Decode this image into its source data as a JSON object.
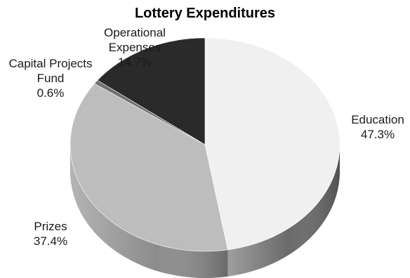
{
  "chart_data": {
    "type": "pie",
    "title": "Lottery Expenditures",
    "slices": [
      {
        "label": "Education",
        "value": 47.3,
        "value_label": "47.3%",
        "color": "#f0f0f0",
        "side_color": "#6a6a6a"
      },
      {
        "label": "Prizes",
        "value": 37.4,
        "value_label": "37.4%",
        "color": "#bdbdbd",
        "side_color": "#8c8c8c"
      },
      {
        "label": "Capital Projects Fund",
        "value": 0.6,
        "value_label": "0.6%",
        "color": "#707070",
        "side_color": "#4a4a4a"
      },
      {
        "label": "Operational Expenses",
        "value": 14.7,
        "value_label": "14.7%",
        "color": "#2a2a2a",
        "side_color": "#111111"
      }
    ],
    "label_lines": [
      [
        "Education",
        "47.3%"
      ],
      [
        "Prizes",
        "37.4%"
      ],
      [
        "Capital Projects",
        "Fund",
        "0.6%"
      ],
      [
        "Operational",
        "Expenses",
        "14.7%"
      ]
    ],
    "start_angle_deg": 0,
    "direction": "clockwise",
    "style": "3d-tilted"
  }
}
